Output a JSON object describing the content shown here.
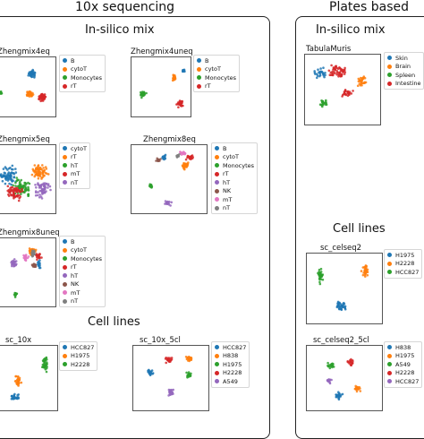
{
  "header": {
    "left": "10x sequencing",
    "right": "Plates based"
  },
  "panel_left": {
    "insilico": "In-silico mix",
    "celllines": "Cell lines"
  },
  "panel_right": {
    "insilico": "In-silico mix",
    "celllines": "Cell lines"
  },
  "palette": {
    "blue": "#1f77b4",
    "orange": "#ff7f0e",
    "green": "#2ca02c",
    "red": "#d62728",
    "purple": "#9467bd",
    "brown": "#8c564b",
    "pink": "#e377c2",
    "gray": "#7f7f7f"
  },
  "chart_data": [
    {
      "id": "zheng4eq",
      "type": "scatter",
      "title": "Zhengmix4eq",
      "legend": [
        "B",
        "cytoT",
        "Monocytes",
        "rT"
      ]
    },
    {
      "id": "zheng4uneq",
      "type": "scatter",
      "title": "Zhengmix4uneq",
      "legend": [
        "B",
        "cytoT",
        "Monocytes",
        "rT"
      ]
    },
    {
      "id": "zheng5eq",
      "type": "scatter",
      "title": "Zhengmix5eq",
      "legend": [
        "cytoT",
        "rT",
        "hT",
        "mT",
        "nT"
      ]
    },
    {
      "id": "zheng8eq",
      "type": "scatter",
      "title": "Zhengmix8eq",
      "legend": [
        "B",
        "cytoT",
        "Monocytes",
        "rT",
        "hT",
        "NK",
        "mT",
        "nT"
      ]
    },
    {
      "id": "zheng8uneq",
      "type": "scatter",
      "title": "Zhengmix8uneq",
      "legend": [
        "B",
        "cytoT",
        "Monocytes",
        "rT",
        "hT",
        "NK",
        "mT",
        "nT"
      ]
    },
    {
      "id": "sc10x",
      "type": "scatter",
      "title": "sc_10x",
      "legend": [
        "HCC827",
        "H1975",
        "H2228"
      ]
    },
    {
      "id": "sc10x5cl",
      "type": "scatter",
      "title": "sc_10x_5cl",
      "legend": [
        "HCC827",
        "H838",
        "H1975",
        "H2228",
        "A549"
      ]
    },
    {
      "id": "tabula",
      "type": "scatter",
      "title": "TabulaMuris",
      "legend": [
        "Skin",
        "Brain",
        "Spleen",
        "Intestine"
      ]
    },
    {
      "id": "celseq2",
      "type": "scatter",
      "title": "sc_celseq2",
      "legend": [
        "H1975",
        "H2228",
        "HCC827"
      ]
    },
    {
      "id": "celseq25cl",
      "type": "scatter",
      "title": "sc_celseq2_5cl",
      "legend": [
        "H838",
        "H1975",
        "A549",
        "H2228",
        "HCC827"
      ]
    }
  ]
}
